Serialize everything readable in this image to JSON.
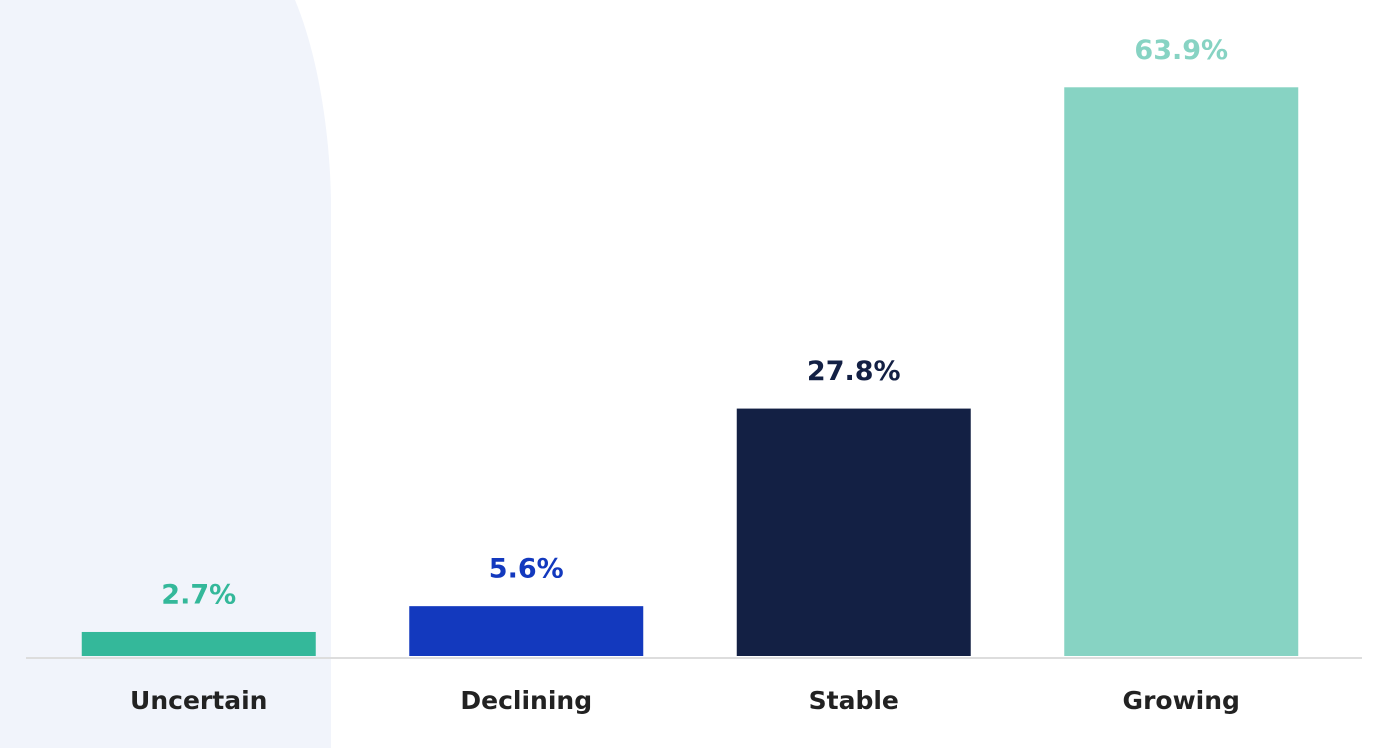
{
  "chart_data": {
    "type": "bar",
    "categories": [
      "Uncertain",
      "Declining",
      "Stable",
      "Growing"
    ],
    "values": [
      2.7,
      5.6,
      27.8,
      63.9
    ],
    "value_labels": [
      "2.7%",
      "5.6%",
      "27.8%",
      "63.9%"
    ],
    "colors": [
      "#34b89a",
      "#1339be",
      "#132044",
      "#87d3c3"
    ]
  }
}
